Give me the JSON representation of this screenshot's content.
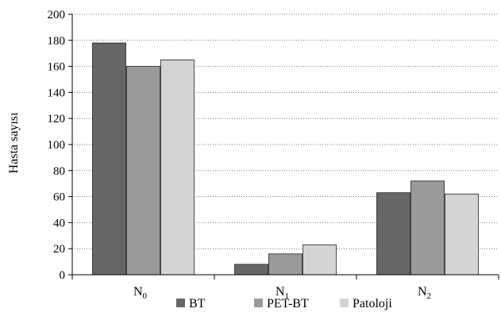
{
  "chart_data": {
    "type": "bar",
    "title": "",
    "xlabel": "",
    "ylabel": "Hasta sayısı",
    "ylim": [
      0,
      200
    ],
    "yticks": [
      0,
      20,
      40,
      60,
      80,
      100,
      120,
      140,
      160,
      180,
      200
    ],
    "categories": [
      "N0",
      "N1",
      "N2"
    ],
    "category_labels": [
      {
        "base": "N",
        "sub": "0"
      },
      {
        "base": "N",
        "sub": "1"
      },
      {
        "base": "N",
        "sub": "2"
      }
    ],
    "series": [
      {
        "name": "BT",
        "color": "#666666",
        "values": [
          178,
          8,
          63
        ]
      },
      {
        "name": "PET-BT",
        "color": "#9a9a9a",
        "values": [
          160,
          16,
          72
        ]
      },
      {
        "name": "Patoloji",
        "color": "#d4d4d4",
        "values": [
          165,
          23,
          62
        ]
      }
    ],
    "grid": true,
    "grid_style": "dotted",
    "legend_position": "bottom"
  }
}
